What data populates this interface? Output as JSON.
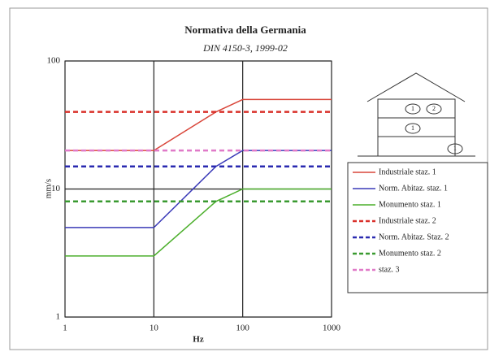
{
  "chart_data": {
    "type": "line",
    "title": "Normativa della Germania",
    "subtitle": "DIN 4150-3, 1999-02",
    "x_label": "Hz",
    "y_label": "mm/s",
    "log_x": true,
    "log_y": true,
    "grid": true,
    "xlim": [
      1,
      1000
    ],
    "xticks": [
      1,
      10,
      100,
      1000
    ],
    "ylim": [
      1,
      100
    ],
    "yticks": [
      1,
      10,
      100
    ],
    "x": [
      1,
      10,
      50,
      100,
      1000
    ],
    "series": [
      {
        "name": "Industriale staz. 1",
        "color": "#d9463a",
        "dashed": false,
        "values": [
          20,
          20,
          40,
          50,
          50
        ]
      },
      {
        "name": "Norm. Abitaz. staz. 1",
        "color": "#3a3ab8",
        "dashed": false,
        "values": [
          5,
          5,
          15,
          20,
          20
        ]
      },
      {
        "name": "Monumento staz. 1",
        "color": "#4caf2c",
        "dashed": false,
        "values": [
          3,
          3,
          8,
          10,
          10
        ]
      },
      {
        "name": "Industriale staz. 2",
        "color": "#d9302a",
        "dashed": true,
        "values": [
          40,
          40,
          40,
          40,
          40
        ]
      },
      {
        "name": "Norm. Abitaz. Staz. 2",
        "color": "#2a2ab0",
        "dashed": true,
        "values": [
          15,
          15,
          15,
          15,
          15
        ]
      },
      {
        "name": "Monumento staz. 2",
        "color": "#3a9a30",
        "dashed": true,
        "values": [
          8,
          8,
          8,
          8,
          8
        ]
      },
      {
        "name": "staz. 3",
        "color": "#e07ac8",
        "dashed": true,
        "values": [
          20,
          20,
          20,
          20,
          20
        ]
      }
    ],
    "building_labels": [
      "1",
      "2",
      "1",
      "1"
    ]
  }
}
